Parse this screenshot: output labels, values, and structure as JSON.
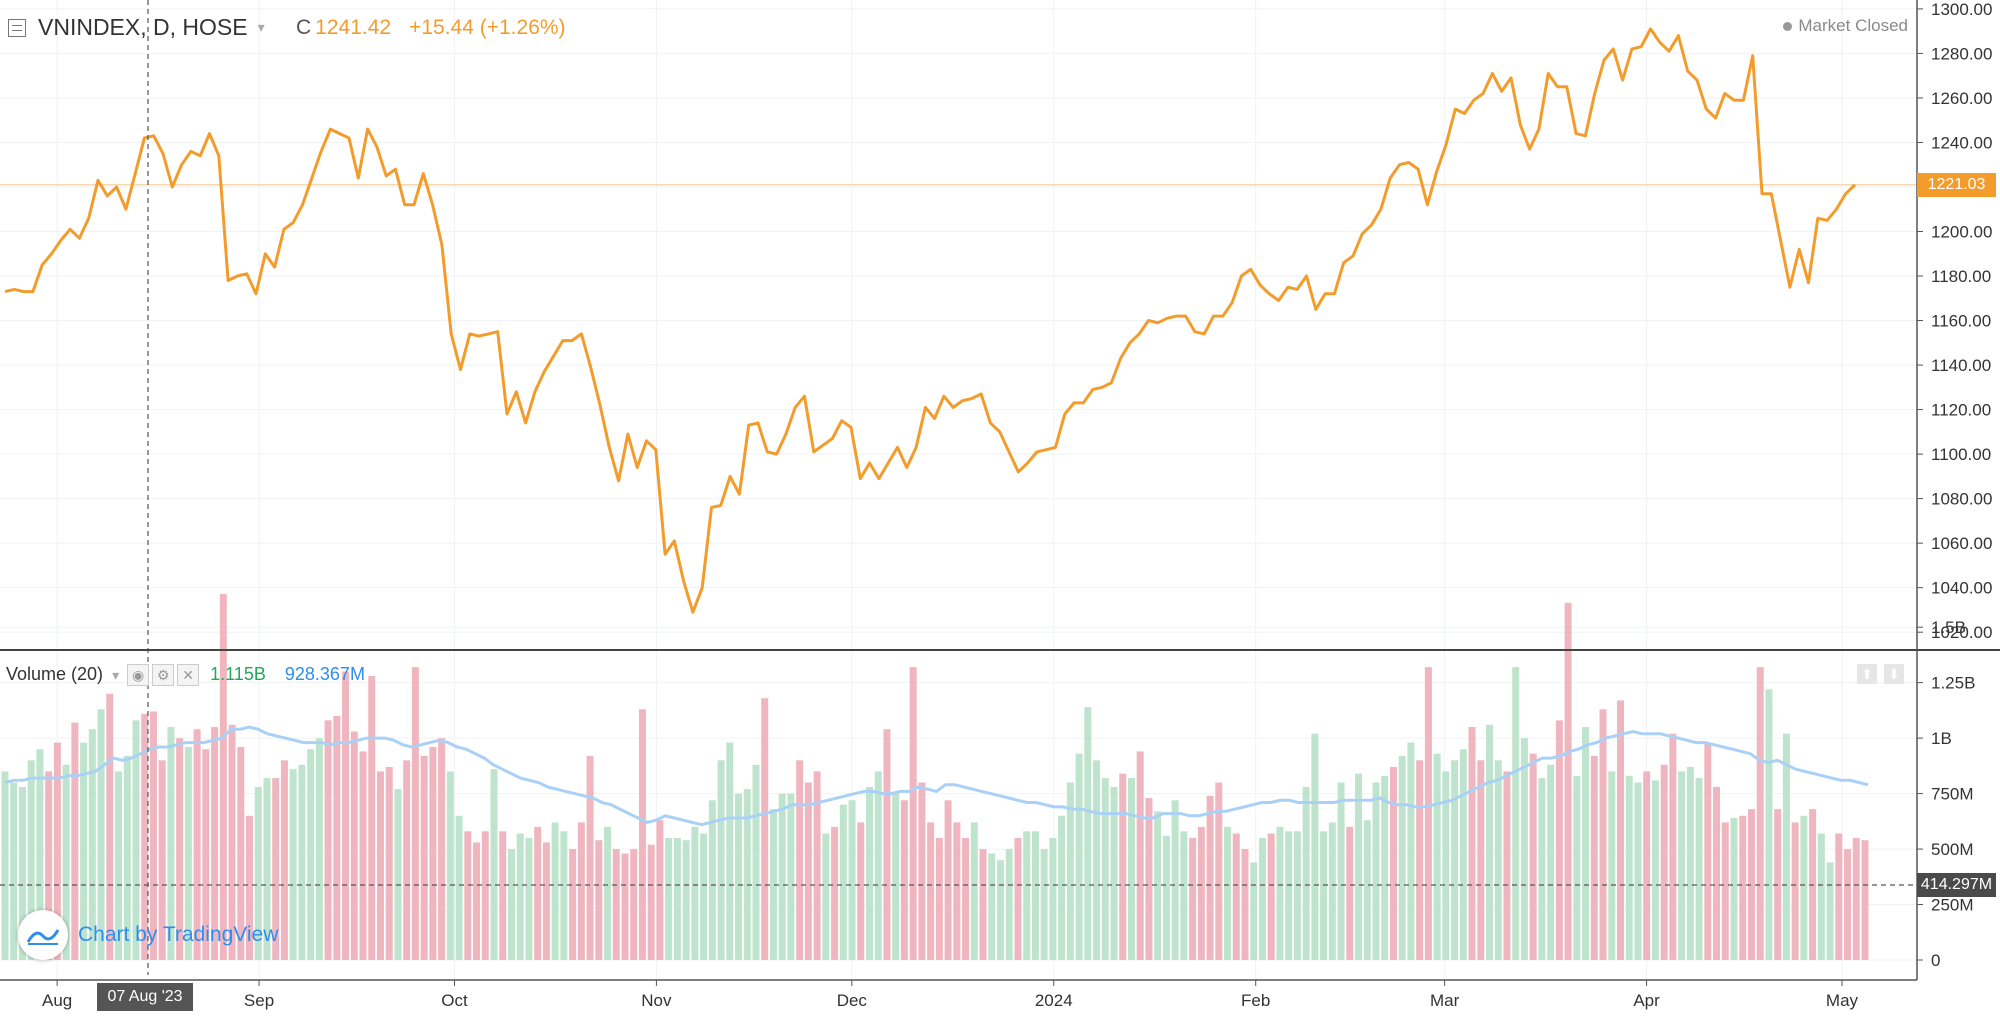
{
  "header": {
    "symbol": "VNINDEX, D, HOSE",
    "close_label": "C",
    "close_value": "1241.42",
    "change": "+15.44 (+1.26%)",
    "status": "Market Closed"
  },
  "volume_pane": {
    "title": "Volume (20)",
    "value": "1.115B",
    "ma_value": "928.367M"
  },
  "crosshair": {
    "date_label": "07 Aug '23",
    "volume_label": "414.297M"
  },
  "current_price_label": "1221.03",
  "watermark": "Chart by TradingView",
  "colors": {
    "price_line": "#f39c2b",
    "volume_up": "#bfe4cd",
    "volume_down": "#f0b6bf",
    "volume_ma": "#a9d1f7",
    "accent_blue": "#2f8ded"
  },
  "chart_data": [
    {
      "type": "line",
      "title": "VNINDEX, D, HOSE",
      "x_start": "2023-07-24",
      "x_end": "2024-05-03",
      "x_ticks": [
        "Aug",
        "Sep",
        "Oct",
        "Nov",
        "Dec",
        "2024",
        "Feb",
        "Mar",
        "Apr",
        "May"
      ],
      "y_ticks": [
        1020,
        1040,
        1060,
        1080,
        1100,
        1120,
        1140,
        1160,
        1180,
        1200,
        1220,
        1240,
        1260,
        1280,
        1300
      ],
      "ylim": [
        1012,
        1304
      ],
      "reference_line": 1221.03,
      "series": [
        {
          "values": [
            1173,
            1174,
            1173,
            1173,
            1185,
            1190,
            1196,
            1201,
            1197,
            1206,
            1223,
            1216,
            1220,
            1210,
            1226,
            1242,
            1243,
            1235,
            1220,
            1230,
            1236,
            1234,
            1244,
            1234,
            1178,
            1180,
            1181,
            1172,
            1190,
            1184,
            1201,
            1204,
            1212,
            1224,
            1236,
            1246,
            1244,
            1242,
            1224,
            1246,
            1238,
            1225,
            1228,
            1212,
            1212,
            1226,
            1212,
            1194,
            1154,
            1138,
            1154,
            1153,
            1154,
            1155,
            1118,
            1128,
            1114,
            1128,
            1137,
            1144,
            1151,
            1151,
            1154,
            1139,
            1122,
            1103,
            1088,
            1109,
            1094,
            1106,
            1102,
            1055,
            1061,
            1043,
            1029,
            1040,
            1076,
            1077,
            1090,
            1082,
            1113,
            1114,
            1101,
            1100,
            1109,
            1121,
            1126,
            1101,
            1104,
            1107,
            1115,
            1112,
            1089,
            1096,
            1089,
            1096,
            1103,
            1094,
            1103,
            1121,
            1116,
            1126,
            1121,
            1124,
            1125,
            1127,
            1114,
            1110,
            1101,
            1092,
            1096,
            1101,
            1102,
            1103,
            1118,
            1123,
            1123,
            1129,
            1130,
            1132,
            1143,
            1150,
            1154,
            1160,
            1159,
            1161,
            1162,
            1162,
            1155,
            1154,
            1162,
            1162,
            1168,
            1180,
            1183,
            1176,
            1172,
            1169,
            1175,
            1174,
            1180,
            1165,
            1172,
            1172,
            1186,
            1189,
            1199,
            1203,
            1210,
            1224,
            1230,
            1231,
            1228,
            1212,
            1227,
            1239,
            1255,
            1253,
            1259,
            1262,
            1271,
            1263,
            1269,
            1248,
            1237,
            1246,
            1271,
            1265,
            1265,
            1244,
            1243,
            1262,
            1277,
            1282,
            1268,
            1282,
            1283,
            1291,
            1285,
            1281,
            1288,
            1272,
            1268,
            1255,
            1251,
            1262,
            1259,
            1259,
            1279,
            1217,
            1217,
            1196,
            1175,
            1192,
            1177,
            1206,
            1205,
            1210,
            1217,
            1221
          ]
        }
      ]
    },
    {
      "type": "bar",
      "title": "Volume (20)",
      "x_start": "2023-07-24",
      "x_end": "2024-05-03",
      "y_ticks": [
        "0",
        "250M",
        "500M",
        "750M",
        "1B",
        "1.25B",
        "1.5B"
      ],
      "ylim": [
        0,
        1.6
      ],
      "y_unit": "B",
      "series": [
        {
          "name": "Volume",
          "values": [
            0.85,
            0.8,
            0.78,
            0.9,
            0.95,
            0.85,
            0.98,
            0.88,
            1.07,
            0.98,
            1.04,
            1.13,
            1.2,
            0.85,
            0.92,
            1.08,
            1.11,
            1.12,
            0.9,
            1.05,
            1.0,
            0.96,
            1.04,
            0.95,
            1.05,
            1.65,
            1.06,
            0.96,
            0.65,
            0.78,
            0.82,
            0.82,
            0.9,
            0.86,
            0.88,
            0.95,
            1.0,
            1.08,
            1.1,
            1.3,
            1.03,
            0.94,
            1.28,
            0.85,
            0.87,
            0.77,
            0.9,
            1.32,
            0.92,
            0.96,
            1.0,
            0.85,
            0.65,
            0.58,
            0.53,
            0.58,
            0.86,
            0.58,
            0.5,
            0.57,
            0.55,
            0.6,
            0.53,
            0.62,
            0.58,
            0.5,
            0.62,
            0.92,
            0.54,
            0.6,
            0.5,
            0.48,
            0.5,
            1.13,
            0.52,
            0.63,
            0.55,
            0.55,
            0.54,
            0.6,
            0.57,
            0.72,
            0.9,
            0.98,
            0.75,
            0.77,
            0.88,
            1.18,
            0.68,
            0.75,
            0.75,
            0.9,
            0.8,
            0.85,
            0.57,
            0.6,
            0.7,
            0.72,
            0.62,
            0.78,
            0.85,
            1.04,
            0.75,
            0.72,
            1.32,
            0.8,
            0.62,
            0.55,
            0.72,
            0.62,
            0.55,
            0.62,
            0.5,
            0.48,
            0.45,
            0.5,
            0.55,
            0.58,
            0.58,
            0.5,
            0.55,
            0.65,
            0.8,
            0.93,
            1.14,
            0.9,
            0.82,
            0.78,
            0.84,
            0.82,
            0.94,
            0.73,
            0.67,
            0.56,
            0.72,
            0.58,
            0.55,
            0.6,
            0.74,
            0.8,
            0.6,
            0.57,
            0.5,
            0.44,
            0.55,
            0.57,
            0.6,
            0.58,
            0.58,
            0.78,
            1.02,
            0.58,
            0.62,
            0.8,
            0.6,
            0.84,
            0.63,
            0.8,
            0.83,
            0.87,
            0.92,
            0.98,
            0.9,
            1.32,
            0.93,
            0.85,
            0.9,
            0.95,
            1.05,
            0.9,
            1.06,
            0.9,
            0.85,
            1.32,
            1.0,
            0.93,
            0.82,
            0.88,
            1.08,
            1.61,
            0.83,
            1.05,
            0.92,
            1.13,
            0.85,
            1.17,
            0.83,
            0.8,
            0.85,
            0.81,
            0.88,
            1.02,
            0.85,
            0.87,
            0.82,
            0.98,
            0.78,
            0.62,
            0.64,
            0.65,
            0.68,
            1.32,
            1.22,
            0.68,
            1.02,
            0.62,
            0.65,
            0.68,
            0.57,
            0.44,
            0.57,
            0.5,
            0.55,
            0.54
          ],
          "up": [
            1,
            1,
            1,
            1,
            1,
            0,
            0,
            1,
            0,
            1,
            1,
            1,
            0,
            1,
            1,
            1,
            0,
            0,
            0,
            1,
            0,
            1,
            0,
            0,
            0,
            0,
            0,
            0,
            0,
            1,
            1,
            0,
            0,
            1,
            1,
            1,
            1,
            0,
            0,
            0,
            0,
            0,
            0,
            0,
            0,
            1,
            0,
            0,
            0,
            0,
            0,
            1,
            1,
            0,
            0,
            0,
            1,
            0,
            1,
            1,
            1,
            0,
            0,
            1,
            1,
            0,
            0,
            0,
            0,
            1,
            0,
            0,
            0,
            0,
            0,
            0,
            1,
            1,
            1,
            1,
            1,
            1,
            1,
            1,
            1,
            1,
            1,
            0,
            1,
            1,
            1,
            0,
            0,
            0,
            1,
            0,
            1,
            1,
            0,
            1,
            1,
            0,
            1,
            0,
            0,
            0,
            0,
            0,
            0,
            0,
            0,
            1,
            0,
            1,
            1,
            1,
            0,
            1,
            1,
            1,
            1,
            1,
            1,
            1,
            1,
            1,
            1,
            1,
            0,
            1,
            0,
            0,
            1,
            1,
            1,
            1,
            0,
            0,
            0,
            0,
            1,
            0,
            0,
            1,
            1,
            0,
            1,
            1,
            1,
            1,
            1,
            1,
            1,
            1,
            0,
            1,
            1,
            1,
            1,
            0,
            1,
            1,
            0,
            0,
            1,
            1,
            1,
            1,
            0,
            0,
            1,
            1,
            0,
            1,
            1,
            0,
            1,
            1,
            0,
            0,
            1,
            1,
            0,
            0,
            1,
            0,
            1,
            1,
            0,
            1,
            0,
            0,
            1,
            1,
            1,
            0,
            0,
            0,
            1,
            0,
            0,
            0,
            1,
            0,
            1,
            0,
            1,
            0,
            1,
            1
          ]
        },
        {
          "name": "Volume MA (20)",
          "values": [
            0.8,
            0.81,
            0.81,
            0.82,
            0.82,
            0.82,
            0.82,
            0.83,
            0.83,
            0.84,
            0.85,
            0.88,
            0.91,
            0.9,
            0.91,
            0.93,
            0.95,
            0.96,
            0.96,
            0.97,
            0.98,
            0.98,
            0.98,
            0.99,
            1.0,
            1.04,
            1.04,
            1.05,
            1.04,
            1.02,
            1.01,
            1.0,
            0.99,
            0.98,
            0.98,
            0.98,
            0.97,
            0.98,
            0.98,
            0.99,
            1.0,
            1.0,
            1.0,
            0.99,
            0.97,
            0.96,
            0.97,
            0.98,
            0.99,
            0.98,
            0.96,
            0.95,
            0.93,
            0.91,
            0.88,
            0.86,
            0.84,
            0.82,
            0.81,
            0.8,
            0.78,
            0.77,
            0.76,
            0.75,
            0.74,
            0.73,
            0.71,
            0.7,
            0.68,
            0.66,
            0.64,
            0.62,
            0.63,
            0.65,
            0.64,
            0.63,
            0.62,
            0.61,
            0.62,
            0.63,
            0.64,
            0.64,
            0.64,
            0.65,
            0.66,
            0.67,
            0.68,
            0.7,
            0.7,
            0.7,
            0.71,
            0.72,
            0.73,
            0.74,
            0.75,
            0.76,
            0.76,
            0.75,
            0.75,
            0.76,
            0.76,
            0.78,
            0.77,
            0.76,
            0.79,
            0.79,
            0.78,
            0.77,
            0.76,
            0.75,
            0.74,
            0.73,
            0.72,
            0.71,
            0.71,
            0.7,
            0.69,
            0.69,
            0.68,
            0.68,
            0.67,
            0.66,
            0.66,
            0.66,
            0.66,
            0.65,
            0.64,
            0.64,
            0.66,
            0.66,
            0.66,
            0.65,
            0.65,
            0.66,
            0.67,
            0.67,
            0.68,
            0.69,
            0.7,
            0.71,
            0.71,
            0.72,
            0.72,
            0.71,
            0.71,
            0.71,
            0.71,
            0.71,
            0.72,
            0.72,
            0.72,
            0.72,
            0.73,
            0.71,
            0.7,
            0.7,
            0.69,
            0.69,
            0.7,
            0.71,
            0.72,
            0.74,
            0.76,
            0.78,
            0.8,
            0.81,
            0.83,
            0.85,
            0.87,
            0.89,
            0.91,
            0.91,
            0.92,
            0.94,
            0.95,
            0.97,
            0.98,
            1.0,
            1.01,
            1.02,
            1.03,
            1.02,
            1.02,
            1.02,
            1.01,
            1.0,
            0.99,
            0.98,
            0.98,
            0.97,
            0.96,
            0.95,
            0.94,
            0.93,
            0.9,
            0.89,
            0.9,
            0.88,
            0.86,
            0.85,
            0.84,
            0.83,
            0.82,
            0.81,
            0.81,
            0.8,
            0.79
          ]
        }
      ]
    }
  ]
}
